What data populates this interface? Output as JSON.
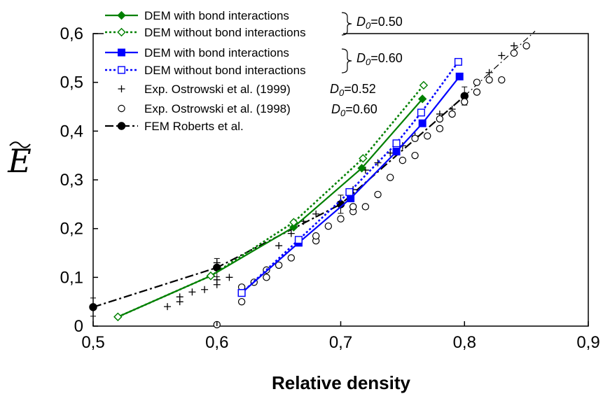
{
  "chart_data": {
    "type": "line",
    "title": "",
    "xlabel": "Relative density",
    "ylabel": "Ẽ",
    "xlim": [
      0.5,
      0.9
    ],
    "ylim": [
      0,
      0.6
    ],
    "xticks": [
      "0,5",
      "0,6",
      "0,7",
      "0,8",
      "0,9"
    ],
    "yticks": [
      "0",
      "0,1",
      "0,2",
      "0,3",
      "0,4",
      "0,5",
      "0,6"
    ],
    "grid": false,
    "legend_position": "top-left",
    "series": [
      {
        "name": "DEM with bond interactions",
        "group": "D0=0.50",
        "color": "#008000",
        "style": "solid",
        "marker": "diamond-filled",
        "points": [
          [
            0.52,
            0.019
          ],
          [
            0.595,
            0.103
          ],
          [
            0.662,
            0.203
          ],
          [
            0.717,
            0.324
          ],
          [
            0.766,
            0.466
          ]
        ]
      },
      {
        "name": "DEM without bond interactions",
        "group": "D0=0.50",
        "color": "#008000",
        "style": "dotted",
        "marker": "diamond-open",
        "points": [
          [
            0.52,
            0.019
          ],
          [
            0.595,
            0.103
          ],
          [
            0.662,
            0.213
          ],
          [
            0.718,
            0.344
          ],
          [
            0.767,
            0.494
          ]
        ]
      },
      {
        "name": "DEM with bond interactions",
        "group": "D0=0.60",
        "color": "#0000ff",
        "style": "solid",
        "marker": "square-filled",
        "points": [
          [
            0.62,
            0.068
          ],
          [
            0.666,
            0.171
          ],
          [
            0.708,
            0.262
          ],
          [
            0.745,
            0.358
          ],
          [
            0.766,
            0.416
          ],
          [
            0.796,
            0.512
          ]
        ]
      },
      {
        "name": "DEM without bond interactions",
        "group": "D0=0.60",
        "color": "#0000ff",
        "style": "dotted",
        "marker": "square-open",
        "points": [
          [
            0.62,
            0.068
          ],
          [
            0.666,
            0.177
          ],
          [
            0.707,
            0.275
          ],
          [
            0.745,
            0.375
          ],
          [
            0.765,
            0.438
          ],
          [
            0.795,
            0.542
          ]
        ]
      },
      {
        "name": "Exp. Ostrowski et al. (1999)",
        "group": "D0=0.52",
        "color": "#000000",
        "style": "none",
        "marker": "plus",
        "points": [
          [
            0.56,
            0.04
          ],
          [
            0.57,
            0.05
          ],
          [
            0.57,
            0.06
          ],
          [
            0.58,
            0.07
          ],
          [
            0.59,
            0.075
          ],
          [
            0.6,
            0.085
          ],
          [
            0.6,
            0.095
          ],
          [
            0.61,
            0.1
          ],
          [
            0.6,
            0.13
          ],
          [
            0.65,
            0.165
          ],
          [
            0.66,
            0.19
          ],
          [
            0.67,
            0.215
          ],
          [
            0.68,
            0.23
          ],
          [
            0.7,
            0.255
          ],
          [
            0.71,
            0.28
          ],
          [
            0.72,
            0.32
          ],
          [
            0.73,
            0.335
          ],
          [
            0.74,
            0.355
          ],
          [
            0.75,
            0.37
          ],
          [
            0.76,
            0.39
          ],
          [
            0.78,
            0.435
          ],
          [
            0.79,
            0.445
          ],
          [
            0.81,
            0.48
          ],
          [
            0.82,
            0.52
          ],
          [
            0.83,
            0.555
          ],
          [
            0.84,
            0.575
          ]
        ]
      },
      {
        "name": "Exp. Ostrowski et al. (1998)",
        "group": "D0=0.60",
        "color": "#000000",
        "style": "none",
        "marker": "circle-open",
        "points": [
          [
            0.6,
            0.003
          ],
          [
            0.62,
            0.05
          ],
          [
            0.62,
            0.08
          ],
          [
            0.63,
            0.09
          ],
          [
            0.64,
            0.1
          ],
          [
            0.64,
            0.115
          ],
          [
            0.65,
            0.125
          ],
          [
            0.66,
            0.14
          ],
          [
            0.68,
            0.175
          ],
          [
            0.68,
            0.185
          ],
          [
            0.69,
            0.205
          ],
          [
            0.7,
            0.22
          ],
          [
            0.71,
            0.235
          ],
          [
            0.71,
            0.245
          ],
          [
            0.72,
            0.245
          ],
          [
            0.73,
            0.27
          ],
          [
            0.74,
            0.305
          ],
          [
            0.75,
            0.34
          ],
          [
            0.76,
            0.35
          ],
          [
            0.76,
            0.385
          ],
          [
            0.77,
            0.39
          ],
          [
            0.78,
            0.405
          ],
          [
            0.78,
            0.425
          ],
          [
            0.79,
            0.435
          ],
          [
            0.8,
            0.46
          ],
          [
            0.81,
            0.48
          ],
          [
            0.81,
            0.5
          ],
          [
            0.82,
            0.505
          ],
          [
            0.83,
            0.505
          ],
          [
            0.84,
            0.56
          ],
          [
            0.85,
            0.575
          ]
        ]
      },
      {
        "name": "FEM Roberts et al.",
        "group": "",
        "color": "#000000",
        "style": "dashdot",
        "marker": "circle-filled",
        "points": [
          [
            0.5,
            0.039
          ],
          [
            0.6,
            0.12
          ],
          [
            0.7,
            0.25
          ],
          [
            0.8,
            0.472
          ],
          [
            0.857,
            0.605
          ]
        ]
      }
    ],
    "annotations": [
      {
        "text": "D",
        "sub": "0",
        "value": "=0.50",
        "row": 0
      },
      {
        "text": "D",
        "sub": "0",
        "value": "=0.60",
        "row": 2
      },
      {
        "text": "D",
        "sub": "0",
        "value": "=0.52",
        "row": 4
      },
      {
        "text": "D",
        "sub": "0",
        "value": "=0.60",
        "row": 5
      }
    ]
  }
}
